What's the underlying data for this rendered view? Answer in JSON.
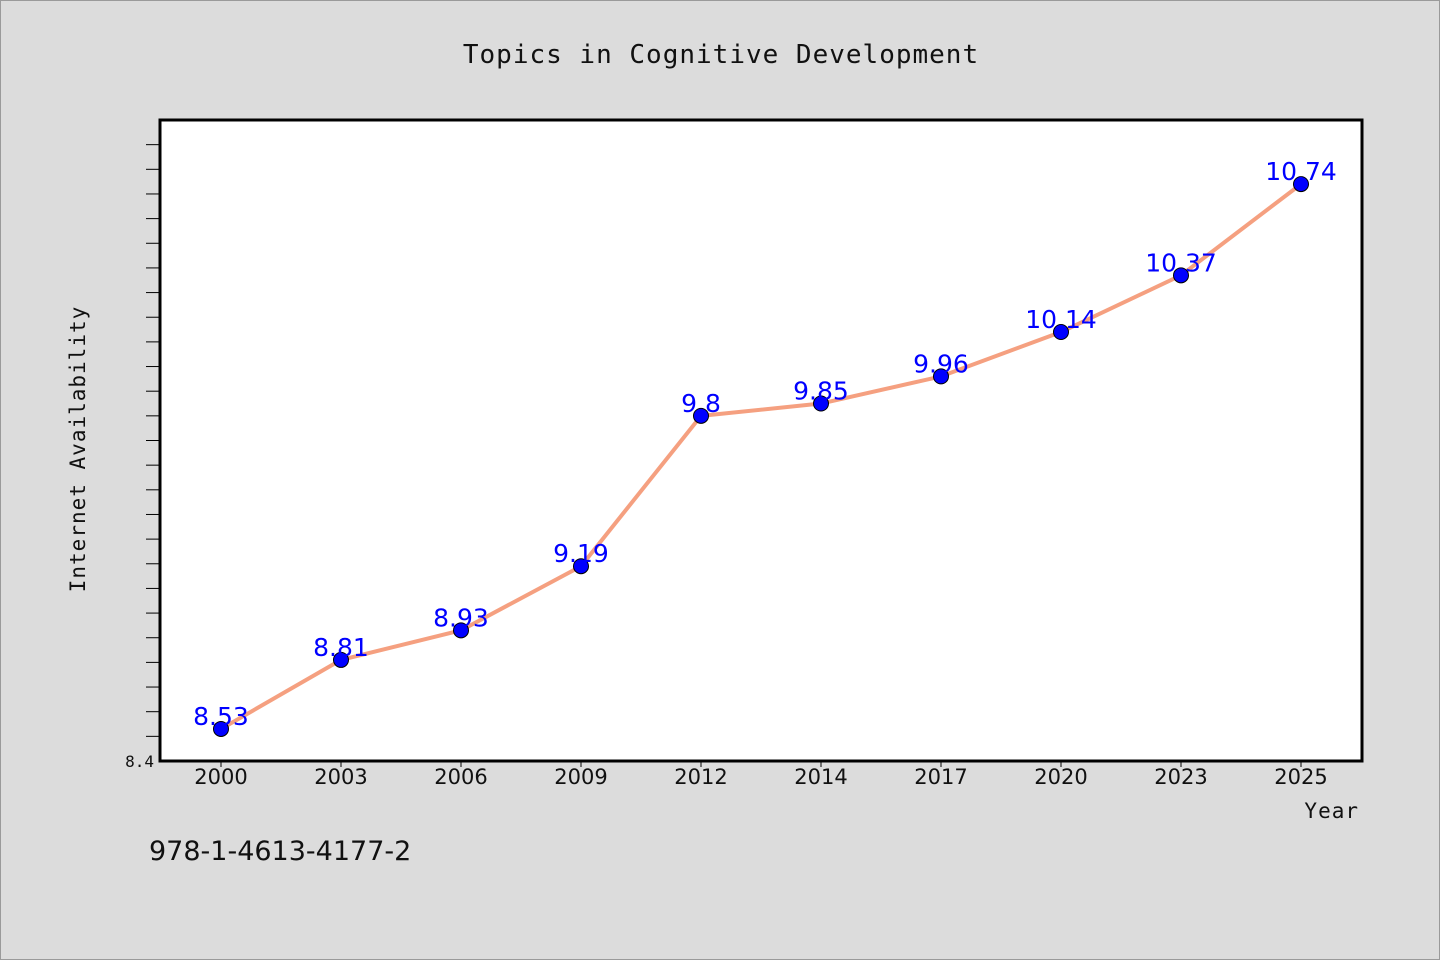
{
  "chart_data": {
    "type": "line",
    "title": "Topics in Cognitive Development",
    "xlabel": "Year",
    "ylabel": "Internet Availability",
    "categories": [
      "2000",
      "2003",
      "2006",
      "2009",
      "2012",
      "2014",
      "2017",
      "2020",
      "2023",
      "2025"
    ],
    "series": [
      {
        "values": [
          8.53,
          8.81,
          8.93,
          9.19,
          9.8,
          9.85,
          9.96,
          10.14,
          10.37,
          10.74
        ]
      }
    ],
    "data_labels": [
      "8.53",
      "8.81",
      "8.93",
      "9.19",
      "9.8",
      "9.85",
      "9.96",
      "10.14",
      "10.37",
      "10.74"
    ],
    "yticks_labeled": [
      "8.4"
    ],
    "ylim": [
      8.4,
      11.0
    ],
    "grid": false,
    "line_color": "#f5a080",
    "marker_color": "#0000ff",
    "label_color": "#0000ff"
  },
  "isbn": "978-1-4613-4177-2"
}
